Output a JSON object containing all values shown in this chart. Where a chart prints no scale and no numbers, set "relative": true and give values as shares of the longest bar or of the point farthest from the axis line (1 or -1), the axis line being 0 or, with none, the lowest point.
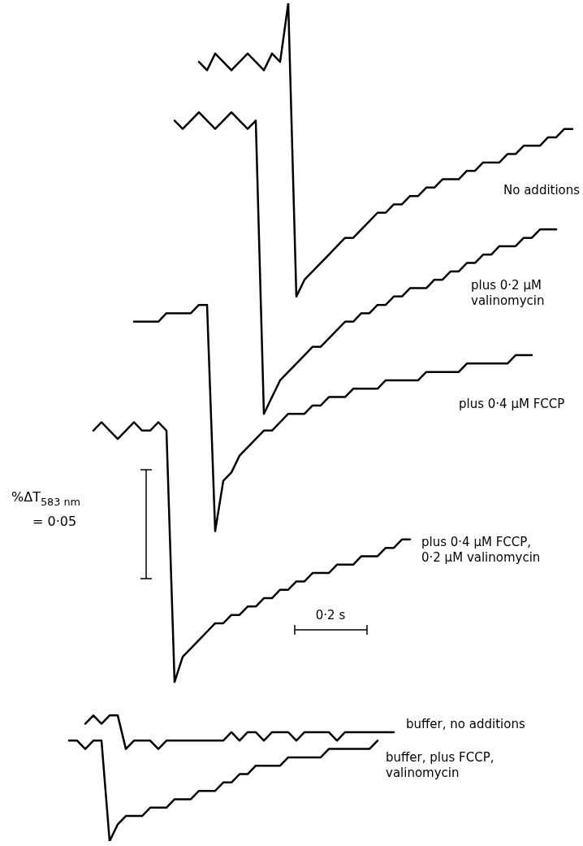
{
  "chart_data": {
    "type": "line",
    "relative": true,
    "categories": [
      null,
      null,
      null,
      null,
      null,
      null,
      null,
      null,
      null,
      null,
      null,
      null,
      null,
      null,
      null,
      null,
      null,
      null,
      null,
      null,
      null,
      null,
      null,
      null,
      null,
      null,
      null,
      null,
      null,
      null,
      null,
      null,
      null,
      null,
      null,
      null,
      null,
      null,
      null,
      null,
      null,
      null,
      null,
      null,
      null,
      null,
      null,
      null,
      null,
      null,
      null,
      null,
      null,
      null,
      null,
      null,
      null,
      null,
      null,
      null,
      null,
      null,
      null
    ],
    "series": [
      {
        "name": "No additions",
        "color": "#000000",
        "values": [
          null,
          null,
          null,
          null,
          null,
          null,
          null,
          null,
          null,
          null,
          null,
          null,
          null,
          null,
          null,
          null,
          0.93,
          0.92,
          0.94,
          0.93,
          0.92,
          0.93,
          0.94,
          0.93,
          0.92,
          0.94,
          0.93,
          1.0,
          0.65,
          0.67,
          0.68,
          0.69,
          0.7,
          0.71,
          0.72,
          0.72,
          0.73,
          0.74,
          0.75,
          0.75,
          0.76,
          0.76,
          0.77,
          0.77,
          0.78,
          0.78,
          0.79,
          0.79,
          0.79,
          0.8,
          0.8,
          0.81,
          0.81,
          0.81,
          0.82,
          0.82,
          0.83,
          0.83,
          0.83,
          0.84,
          0.84,
          0.85,
          0.85
        ]
      },
      {
        "name": "plus 0·2 μM valinomycin",
        "color": "#000000",
        "values": [
          null,
          null,
          null,
          null,
          null,
          null,
          null,
          null,
          null,
          null,
          null,
          null,
          null,
          0.86,
          0.85,
          0.86,
          0.87,
          0.86,
          0.85,
          0.86,
          0.87,
          0.86,
          0.85,
          0.86,
          0.51,
          0.53,
          0.55,
          0.56,
          0.57,
          0.58,
          0.59,
          0.59,
          0.6,
          0.61,
          0.62,
          0.62,
          0.63,
          0.63,
          0.64,
          0.64,
          0.65,
          0.65,
          0.66,
          0.66,
          0.66,
          0.67,
          0.67,
          0.68,
          0.68,
          0.69,
          0.69,
          0.7,
          0.7,
          0.71,
          0.71,
          0.71,
          0.72,
          0.72,
          0.73,
          0.73,
          0.73,
          null,
          null
        ]
      },
      {
        "name": "plus 0·4 μM FCCP",
        "color": "#000000",
        "values": [
          null,
          null,
          null,
          null,
          null,
          null,
          null,
          null,
          0.62,
          0.62,
          0.62,
          0.62,
          0.63,
          0.63,
          0.63,
          0.63,
          0.64,
          0.64,
          0.37,
          0.43,
          0.44,
          0.46,
          0.47,
          0.48,
          0.49,
          0.49,
          0.5,
          0.51,
          0.51,
          0.51,
          0.52,
          0.52,
          0.53,
          0.53,
          0.53,
          0.54,
          0.54,
          0.54,
          0.54,
          0.55,
          0.55,
          0.55,
          0.55,
          0.55,
          0.56,
          0.56,
          0.56,
          0.56,
          0.56,
          0.57,
          0.57,
          0.57,
          0.57,
          0.57,
          0.57,
          0.58,
          0.58,
          0.58,
          null,
          null,
          null,
          null,
          null
        ]
      },
      {
        "name": "plus 0·4 μM FCCP, 0·2 μM valinomycin",
        "color": "#000000",
        "values": [
          null,
          null,
          null,
          0.49,
          0.5,
          0.49,
          0.48,
          0.49,
          0.5,
          0.49,
          0.49,
          0.5,
          0.49,
          0.19,
          0.22,
          0.23,
          0.24,
          0.25,
          0.26,
          0.26,
          0.27,
          0.27,
          0.28,
          0.28,
          0.29,
          0.29,
          0.3,
          0.3,
          0.31,
          0.31,
          0.32,
          0.32,
          0.32,
          0.33,
          0.33,
          0.33,
          0.34,
          0.34,
          0.34,
          0.35,
          0.35,
          0.36,
          0.36,
          null,
          null,
          null,
          null,
          null,
          null,
          null,
          null,
          null,
          null,
          null,
          null,
          null,
          null,
          null,
          null,
          null,
          null,
          null,
          null
        ]
      },
      {
        "name": "buffer, no additions",
        "color": "#000000",
        "values": [
          null,
          null,
          0.14,
          0.15,
          0.14,
          0.15,
          0.15,
          0.11,
          0.12,
          0.12,
          0.12,
          0.11,
          0.12,
          0.12,
          0.12,
          0.12,
          0.12,
          0.12,
          0.12,
          0.12,
          0.13,
          0.12,
          0.13,
          0.13,
          0.12,
          0.13,
          0.13,
          0.13,
          0.12,
          0.13,
          0.13,
          0.13,
          0.13,
          0.12,
          0.13,
          0.13,
          0.13,
          0.13,
          0.13,
          0.13,
          0.13,
          null,
          null,
          null,
          null,
          null,
          null,
          null,
          null,
          null,
          null,
          null,
          null,
          null,
          null,
          null,
          null,
          null,
          null,
          null,
          null,
          null,
          null
        ]
      },
      {
        "name": "buffer, plus FCCP, valinomycin",
        "color": "#000000",
        "values": [
          0.12,
          0.12,
          0.11,
          0.12,
          0.12,
          0.0,
          0.02,
          0.03,
          0.03,
          0.03,
          0.04,
          0.04,
          0.04,
          0.05,
          0.05,
          0.05,
          0.06,
          0.06,
          0.06,
          0.07,
          0.07,
          0.08,
          0.08,
          0.09,
          0.09,
          0.09,
          0.09,
          0.1,
          0.1,
          0.1,
          0.1,
          0.1,
          0.11,
          0.11,
          0.11,
          0.11,
          0.11,
          0.11,
          0.12,
          null,
          null,
          null,
          null,
          null,
          null,
          null,
          null,
          null,
          null,
          null,
          null,
          null,
          null,
          null,
          null,
          null,
          null,
          null,
          null,
          null,
          null,
          null,
          null
        ]
      }
    ],
    "annotations": [
      "%ΔT$_{583 nm}$ = 0·05",
      "0·2 s"
    ]
  }
}
